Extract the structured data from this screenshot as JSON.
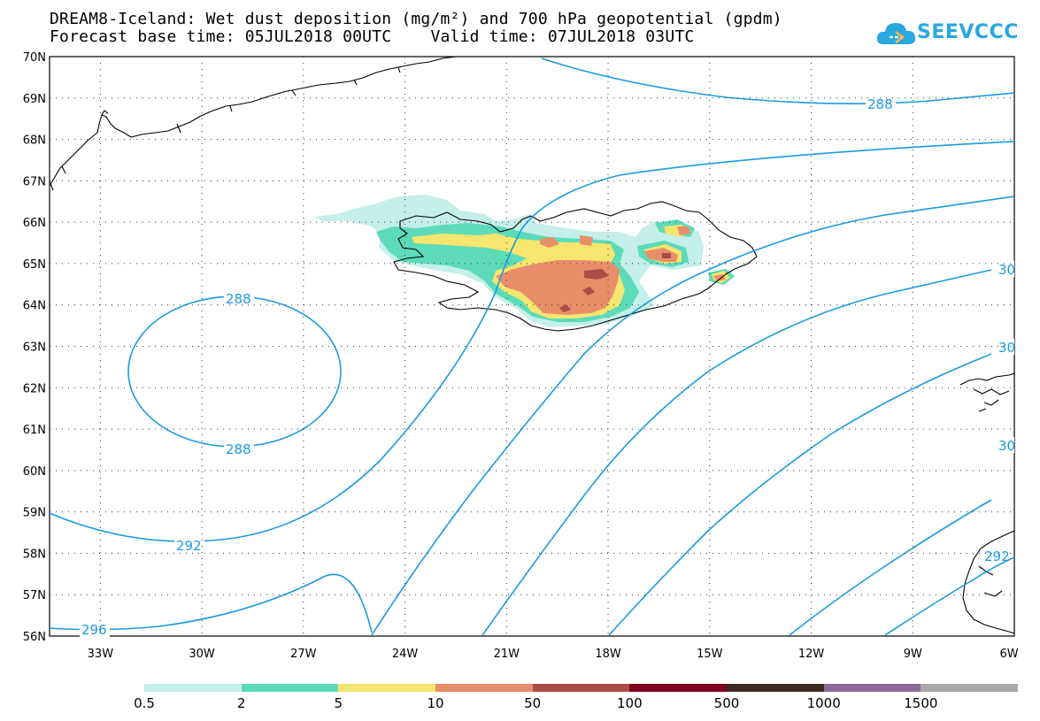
{
  "header": {
    "title_line1": "DREAM8-Iceland: Wet dust deposition (mg/m²) and 700 hPa geopotential (gpdm)",
    "title_line2": "Forecast base time: 05JUL2018 00UTC    Valid time: 07JUL2018 03UTC",
    "logo_text": "SEEVCCC"
  },
  "map": {
    "lat_labels": [
      "70N",
      "69N",
      "68N",
      "67N",
      "66N",
      "65N",
      "64N",
      "63N",
      "62N",
      "61N",
      "60N",
      "59N",
      "58N",
      "57N",
      "56N"
    ],
    "lon_labels": [
      "33W",
      "30W",
      "27W",
      "24W",
      "21W",
      "18W",
      "15W",
      "12W",
      "9W",
      "6W"
    ],
    "lat_range": [
      56,
      70
    ],
    "lon_range": [
      -34.5,
      -6
    ],
    "grid": "dotted",
    "contour_labels": [
      "288",
      "288",
      "288",
      "292",
      "296",
      "30",
      "30",
      "30",
      "292"
    ],
    "contour_color": "#1a9be0"
  },
  "legend": {
    "colors": [
      "#c5efe9",
      "#5ddbb8",
      "#f6e56e",
      "#e88f6a",
      "#a84e46",
      "#800020",
      "#3b2b22",
      "#8f6a9c",
      "#a9a9a9"
    ],
    "labels": [
      "0.5",
      "2",
      "5",
      "10",
      "50",
      "100",
      "500",
      "1000",
      "1500"
    ]
  }
}
